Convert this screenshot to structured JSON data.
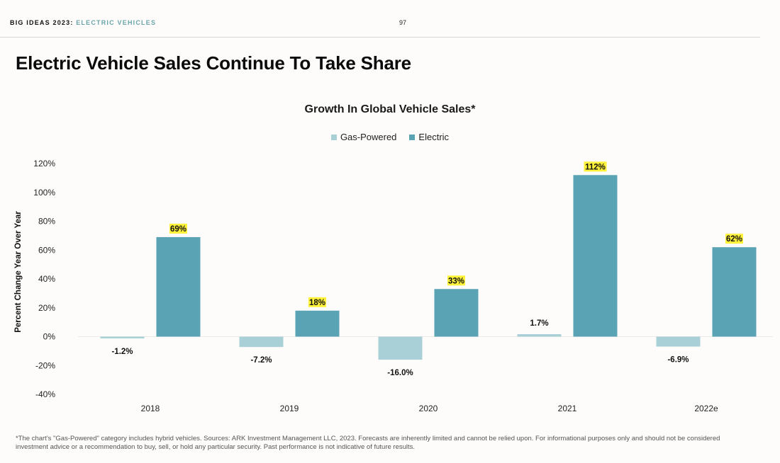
{
  "header": {
    "brand": "BIG IDEAS 2023:",
    "section": "ELECTRIC VEHICLES",
    "page_number": "97"
  },
  "title": "Electric Vehicle Sales Continue To Take Share",
  "colors": {
    "gas": "#a9d0d7",
    "electric": "#59a3b4",
    "highlight": "#fff23a",
    "section_accent": "#6aa5ab"
  },
  "chart_data": {
    "type": "bar",
    "title": "Growth In Global Vehicle Sales*",
    "xlabel": "",
    "ylabel": "Percent Change Year Over Year",
    "categories": [
      "2018",
      "2019",
      "2020",
      "2021",
      "2022e"
    ],
    "series": [
      {
        "name": "Gas-Powered",
        "values": [
          -1.2,
          -7.2,
          -16.0,
          1.7,
          -6.9
        ],
        "labels": [
          "-1.2%",
          "-7.2%",
          "-16.0%",
          "1.7%",
          "-6.9%"
        ]
      },
      {
        "name": "Electric",
        "values": [
          69,
          18,
          33,
          112,
          62
        ],
        "labels": [
          "69%",
          "18%",
          "33%",
          "112%",
          "62%"
        ],
        "labels_highlighted": true
      }
    ],
    "ylim": [
      -40,
      120
    ],
    "yticks": [
      -40,
      -20,
      0,
      20,
      40,
      60,
      80,
      100,
      120
    ],
    "ytick_labels": [
      "-40%",
      "-20%",
      "0%",
      "20%",
      "40%",
      "60%",
      "80%",
      "100%",
      "120%"
    ],
    "grid": false,
    "legend_position": "top-center"
  },
  "footnote": [
    "*The chart's \"Gas-Powered\" category includes hybrid vehicles. Sources: ARK Investment Management LLC, 2023. Forecasts are inherently limited and cannot be relied upon. For informational purposes only and should not be considered",
    "investment advice or a recommendation to buy, sell, or hold any particular security. Past performance is not indicative of future results."
  ]
}
